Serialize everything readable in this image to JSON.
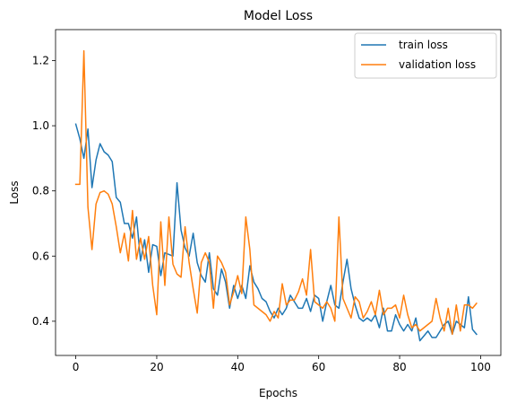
{
  "chart_data": {
    "type": "line",
    "title": "Model Loss",
    "xlabel": "Epochs",
    "ylabel": "Loss",
    "xlim": [
      -5,
      105
    ],
    "ylim": [
      0.295,
      1.295
    ],
    "xticks": [
      0,
      20,
      40,
      60,
      80,
      100
    ],
    "yticks": [
      0.4,
      0.6,
      0.8,
      1.0,
      1.2
    ],
    "xtick_labels": [
      "0",
      "20",
      "40",
      "60",
      "80",
      "100"
    ],
    "ytick_labels": [
      "0.4",
      "0.6",
      "0.8",
      "1.0",
      "1.2"
    ],
    "legend": {
      "placement": "top-right",
      "entries": [
        "train loss",
        "validation loss"
      ]
    },
    "grid": false,
    "series": [
      {
        "name": "train loss",
        "color": "#1f77b4",
        "x": [
          0,
          1,
          2,
          3,
          4,
          5,
          6,
          7,
          8,
          9,
          10,
          11,
          12,
          13,
          14,
          15,
          16,
          17,
          18,
          19,
          20,
          21,
          22,
          23,
          24,
          25,
          26,
          27,
          28,
          29,
          30,
          31,
          32,
          33,
          34,
          35,
          36,
          37,
          38,
          39,
          40,
          41,
          42,
          43,
          44,
          45,
          46,
          47,
          48,
          49,
          50,
          51,
          52,
          53,
          54,
          55,
          56,
          57,
          58,
          59,
          60,
          61,
          62,
          63,
          64,
          65,
          66,
          67,
          68,
          69,
          70,
          71,
          72,
          73,
          74,
          75,
          76,
          77,
          78,
          79,
          80,
          81,
          82,
          83,
          84,
          85,
          86,
          87,
          88,
          89,
          90,
          91,
          92,
          93,
          94,
          95,
          96,
          97,
          98,
          99
        ],
        "values": [
          1.005,
          0.96,
          0.9,
          0.99,
          0.81,
          0.895,
          0.945,
          0.92,
          0.91,
          0.89,
          0.78,
          0.765,
          0.7,
          0.7,
          0.655,
          0.72,
          0.585,
          0.65,
          0.55,
          0.635,
          0.63,
          0.54,
          0.61,
          0.605,
          0.6,
          0.825,
          0.68,
          0.625,
          0.6,
          0.67,
          0.58,
          0.54,
          0.52,
          0.61,
          0.5,
          0.48,
          0.56,
          0.52,
          0.44,
          0.51,
          0.47,
          0.51,
          0.47,
          0.57,
          0.52,
          0.5,
          0.47,
          0.46,
          0.43,
          0.41,
          0.44,
          0.42,
          0.44,
          0.48,
          0.46,
          0.44,
          0.44,
          0.47,
          0.43,
          0.48,
          0.47,
          0.4,
          0.46,
          0.51,
          0.45,
          0.44,
          0.52,
          0.59,
          0.5,
          0.45,
          0.41,
          0.4,
          0.41,
          0.4,
          0.42,
          0.38,
          0.44,
          0.37,
          0.37,
          0.42,
          0.39,
          0.37,
          0.39,
          0.37,
          0.41,
          0.34,
          0.355,
          0.37,
          0.35,
          0.35,
          0.37,
          0.39,
          0.4,
          0.36,
          0.4,
          0.39,
          0.38,
          0.475,
          0.375,
          0.36
        ]
      },
      {
        "name": "validation loss",
        "color": "#ff7f0e",
        "x": [
          0,
          1,
          2,
          3,
          4,
          5,
          6,
          7,
          8,
          9,
          10,
          11,
          12,
          13,
          14,
          15,
          16,
          17,
          18,
          19,
          20,
          21,
          22,
          23,
          24,
          25,
          26,
          27,
          28,
          29,
          30,
          31,
          32,
          33,
          34,
          35,
          36,
          37,
          38,
          39,
          40,
          41,
          42,
          43,
          44,
          45,
          46,
          47,
          48,
          49,
          50,
          51,
          52,
          53,
          54,
          55,
          56,
          57,
          58,
          59,
          60,
          61,
          62,
          63,
          64,
          65,
          66,
          67,
          68,
          69,
          70,
          71,
          72,
          73,
          74,
          75,
          76,
          77,
          78,
          79,
          80,
          81,
          82,
          83,
          84,
          85,
          86,
          87,
          88,
          89,
          90,
          91,
          92,
          93,
          94,
          95,
          96,
          97,
          98,
          99
        ],
        "values": [
          0.82,
          0.82,
          1.23,
          0.75,
          0.62,
          0.76,
          0.795,
          0.8,
          0.79,
          0.76,
          0.69,
          0.61,
          0.67,
          0.585,
          0.74,
          0.59,
          0.655,
          0.59,
          0.66,
          0.51,
          0.42,
          0.705,
          0.51,
          0.72,
          0.575,
          0.545,
          0.535,
          0.69,
          0.58,
          0.5,
          0.425,
          0.58,
          0.61,
          0.58,
          0.44,
          0.6,
          0.58,
          0.55,
          0.45,
          0.49,
          0.54,
          0.485,
          0.72,
          0.62,
          0.45,
          0.44,
          0.43,
          0.42,
          0.4,
          0.43,
          0.41,
          0.515,
          0.45,
          0.465,
          0.465,
          0.49,
          0.53,
          0.48,
          0.62,
          0.46,
          0.45,
          0.44,
          0.46,
          0.44,
          0.4,
          0.72,
          0.47,
          0.44,
          0.41,
          0.475,
          0.46,
          0.41,
          0.43,
          0.46,
          0.42,
          0.495,
          0.42,
          0.44,
          0.44,
          0.45,
          0.41,
          0.48,
          0.42,
          0.38,
          0.39,
          0.37,
          0.38,
          0.39,
          0.4,
          0.47,
          0.41,
          0.37,
          0.44,
          0.36,
          0.45,
          0.37,
          0.45,
          0.45,
          0.44,
          0.455
        ]
      }
    ]
  }
}
